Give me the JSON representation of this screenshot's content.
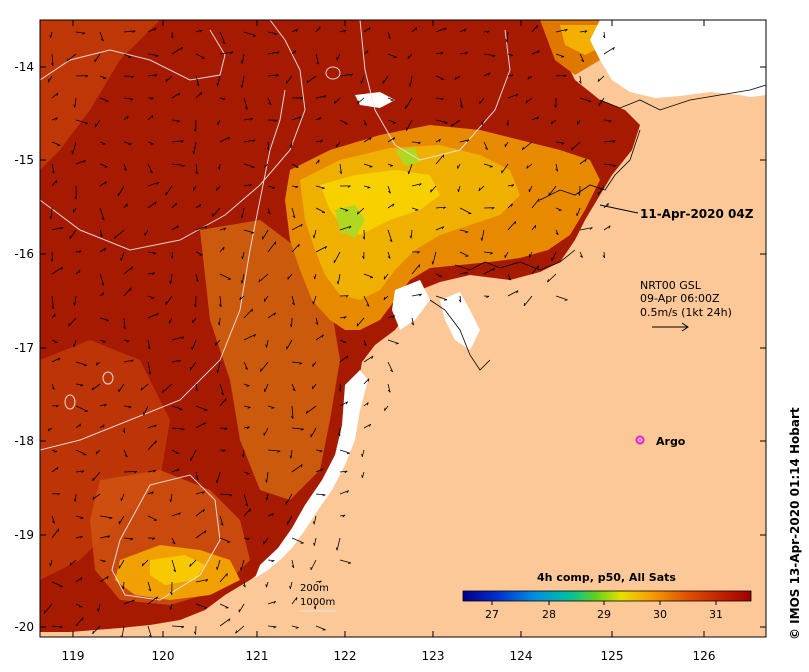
{
  "map": {
    "lon_ticks": [
      "119",
      "120",
      "121",
      "122",
      "123",
      "124",
      "125",
      "126"
    ],
    "lat_ticks": [
      "-14",
      "-15",
      "-16",
      "-17",
      "-18",
      "-19",
      "-20"
    ],
    "timestamp_label": "11-Apr-2020 04Z",
    "current_label": {
      "line1": "NRT00 GSL",
      "line2": "09-Apr 06:00Z",
      "line3": "0.5m/s (1kt 24h)"
    },
    "argo_label": "Argo",
    "depth_labels": [
      "200m",
      "1000m"
    ],
    "colorbar": {
      "title": "4h comp, p50, All Sats",
      "ticks": [
        "27",
        "28",
        "29",
        "30",
        "31"
      ]
    },
    "credit": "© IMOS 13-Apr-2020 01:14 Hobart",
    "colors": {
      "land": "#fcc898",
      "hot": "#a51a00",
      "warm": "#d44a00",
      "mid": "#f08a00",
      "yellow": "#f8c800",
      "green": "#a8e020",
      "argo": "#e020e0"
    }
  }
}
